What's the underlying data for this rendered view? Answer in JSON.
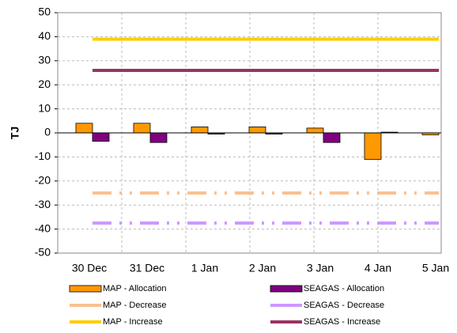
{
  "chart_data": {
    "type": "bar",
    "categories": [
      "30 Dec",
      "31 Dec",
      "1 Jan",
      "2 Jan",
      "3 Jan",
      "4 Jan",
      "5 Jan"
    ],
    "y_label": "TJ",
    "ylim": [
      -50,
      50
    ],
    "yticks": [
      -50,
      -40,
      -30,
      -20,
      -10,
      0,
      10,
      20,
      30,
      40,
      50
    ],
    "grid": true,
    "legend": "bottom",
    "series": [
      {
        "name": "MAP - Allocation",
        "type": "bar",
        "color": "#ff9900",
        "values": [
          4,
          4,
          2.5,
          2.5,
          2,
          -11,
          -0.8
        ]
      },
      {
        "name": "SEAGAS - Allocation",
        "type": "bar",
        "color": "#800080",
        "values": [
          -3.5,
          -4,
          -0.5,
          -0.5,
          -4,
          0.3,
          null
        ]
      },
      {
        "name": "MAP - Decrease",
        "type": "line",
        "dash": "dashdot",
        "color": "#fac090",
        "values": [
          -25,
          -25,
          -25,
          -25,
          -25,
          -25,
          -25
        ]
      },
      {
        "name": "SEAGAS - Decrease",
        "type": "line",
        "dash": "dashdot",
        "color": "#cc99ff",
        "values": [
          -37.5,
          -37.5,
          -37.5,
          -37.5,
          -37.5,
          -37.5,
          -37.5
        ]
      },
      {
        "name": "MAP - Increase",
        "type": "line",
        "color": "#ffcc00",
        "values": [
          39,
          39,
          39,
          39,
          39,
          39,
          39
        ]
      },
      {
        "name": "SEAGAS - Increase",
        "type": "line",
        "color": "#993366",
        "values": [
          26,
          26,
          26,
          26,
          26,
          26,
          26
        ]
      }
    ]
  }
}
